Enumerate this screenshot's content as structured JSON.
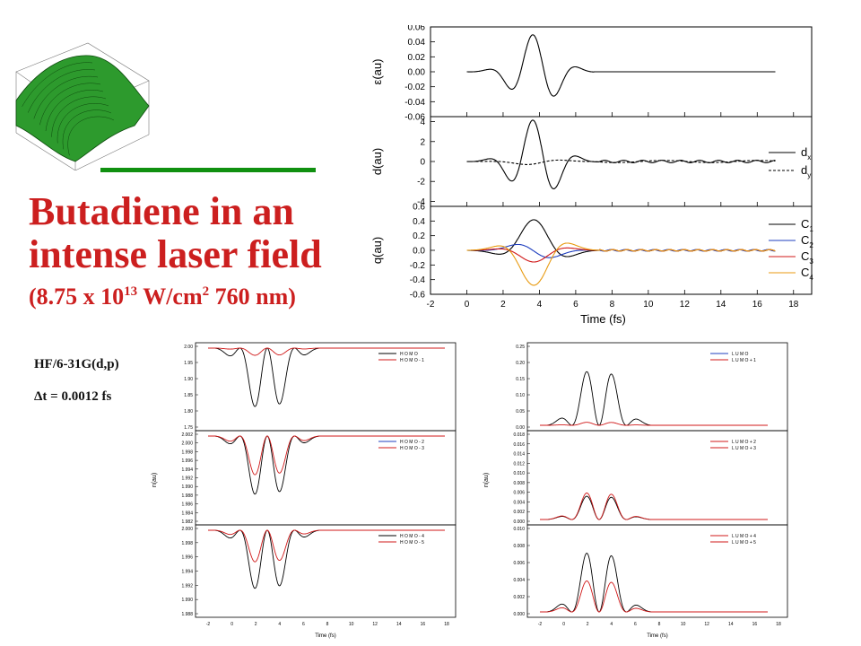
{
  "title": {
    "line1": "Butadiene in an",
    "line2": "intense laser field",
    "line3_pre": "(8.75 x 10",
    "line3_sup1": "13",
    "line3_mid": " W/cm",
    "line3_sup2": "2",
    "line3_post": " 760 nm)"
  },
  "method": "HF/6-31G(d,p)",
  "timestep": "Δt = 0.0012 fs",
  "colors": {
    "title": "#cc1f1f",
    "accent_bar": "#109010",
    "black": "#000000",
    "blue": "#1f3fbf",
    "red": "#d01818",
    "orange": "#e89a10",
    "surface": "#2d9a2d"
  },
  "chart_data": [
    {
      "id": "field",
      "type": "line",
      "ylabel": "ε(au)",
      "yticks": [
        "0.06",
        "0.04",
        "0.02",
        "0.00",
        "-0.02",
        "-0.04",
        "-0.06"
      ],
      "ylim": [
        -0.06,
        0.06
      ],
      "xlim": [
        -2,
        19
      ],
      "series": [
        {
          "name": "",
          "color": "#000000",
          "style": "solid",
          "kind": "field",
          "amp": 0.05,
          "cut": 7.0
        }
      ]
    },
    {
      "id": "dipole",
      "type": "line",
      "ylabel": "d(au)",
      "yticks": [
        "4",
        "2",
        "0",
        "-2",
        "-4"
      ],
      "ylim": [
        -4.5,
        4.5
      ],
      "xlim": [
        -2,
        19
      ],
      "legend": [
        {
          "label": "d",
          "sub": "x",
          "color": "#000000",
          "style": "solid"
        },
        {
          "label": "d",
          "sub": "y",
          "color": "#000000",
          "style": "dashed"
        }
      ],
      "series": [
        {
          "name": "dx",
          "color": "#000000",
          "style": "solid",
          "kind": "dx",
          "amp": 4.2
        },
        {
          "name": "dy",
          "color": "#000000",
          "style": "dashed",
          "kind": "dy",
          "amp": 0.35
        }
      ]
    },
    {
      "id": "charges",
      "type": "line",
      "ylabel": "q(au)",
      "xlabel": "Time (fs)",
      "yticks": [
        "0.6",
        "0.4",
        "0.2",
        "0.0",
        "-0.2",
        "-0.4",
        "-0.6"
      ],
      "xticks": [
        "-2",
        "0",
        "2",
        "4",
        "6",
        "8",
        "10",
        "12",
        "14",
        "16",
        "18"
      ],
      "ylim": [
        -0.6,
        0.6
      ],
      "xlim": [
        -2,
        19
      ],
      "legend": [
        {
          "label": "C",
          "sub": "1",
          "color": "#000000"
        },
        {
          "label": "C",
          "sub": "2",
          "color": "#1f3fbf"
        },
        {
          "label": "C",
          "sub": "3",
          "color": "#d01818"
        },
        {
          "label": "C",
          "sub": "4",
          "color": "#e89a10"
        }
      ],
      "series": [
        {
          "name": "C1",
          "color": "#000000",
          "kind": "q",
          "amp": 0.42,
          "phase": 0
        },
        {
          "name": "C2",
          "color": "#1f3fbf",
          "kind": "q",
          "amp": 0.14,
          "phase": 1
        },
        {
          "name": "C3",
          "color": "#d01818",
          "kind": "q",
          "amp": -0.16,
          "phase": 0
        },
        {
          "name": "C4",
          "color": "#e89a10",
          "kind": "q",
          "amp": -0.48,
          "phase": 0
        }
      ]
    }
  ],
  "small_panels": {
    "occupations_xlabel": "Time (fs)",
    "ylabel": "n(au)",
    "homo": {
      "yticks_top": [
        "2.00",
        "1.95",
        "1.90",
        "1.85",
        "1.80",
        "1.75"
      ],
      "yticks_mid": [
        "2.002",
        "2.000",
        "1.998",
        "1.996",
        "1.994",
        "1.992",
        "1.990",
        "1.988",
        "1.986",
        "1.984",
        "1.982"
      ],
      "yticks_bot": [
        "2.000",
        "1.998",
        "1.996",
        "1.994",
        "1.992",
        "1.990",
        "1.988"
      ],
      "legend_top": [
        "H O M O",
        "H O M O - 1"
      ],
      "legend_mid": [
        "H O M O - 2",
        "H O M O - 3"
      ],
      "legend_bot": [
        "H O M O - 4",
        "H O M O - 5"
      ]
    },
    "lumo": {
      "yticks_top": [
        "0.25",
        "0.20",
        "0.15",
        "0.10",
        "0.05",
        "0.00"
      ],
      "yticks_mid": [
        "0.018",
        "0.016",
        "0.014",
        "0.012",
        "0.010",
        "0.008",
        "0.006",
        "0.004",
        "0.002",
        "0.000"
      ],
      "yticks_bot": [
        "0.010",
        "0.008",
        "0.006",
        "0.004",
        "0.002",
        "0.000"
      ],
      "legend_top": [
        "L U M O",
        "L U M O + 1"
      ],
      "legend_mid": [
        "L U M O + 2",
        "L U M O + 3"
      ],
      "legend_bot": [
        "L U M O + 4",
        "L U M O + 5"
      ]
    },
    "xticks": [
      "-2",
      "0",
      "2",
      "4",
      "6",
      "8",
      "10",
      "12",
      "14",
      "16",
      "18"
    ]
  }
}
